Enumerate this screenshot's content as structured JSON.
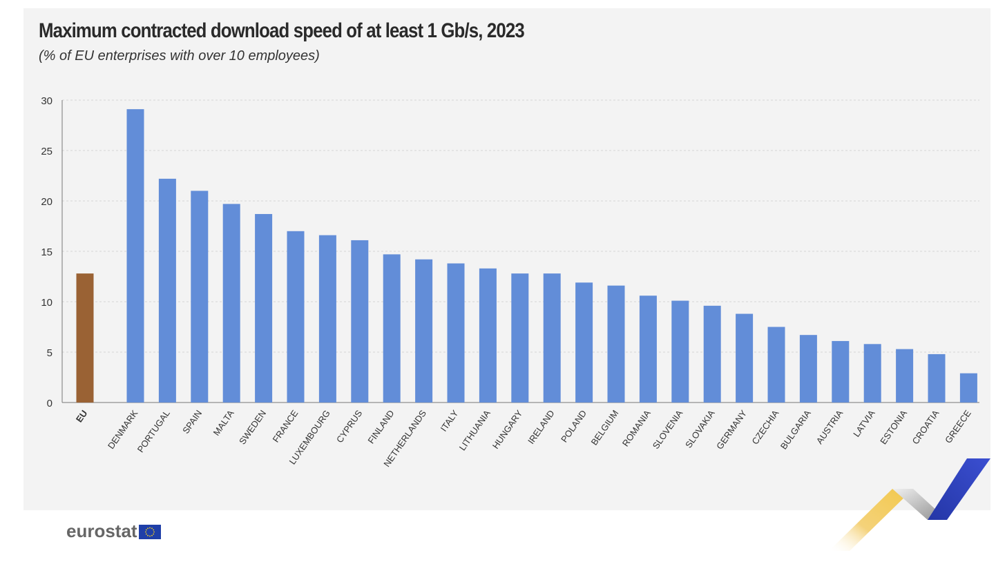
{
  "header": {
    "title": "Maximum contracted download speed of at least 1 Gb/s, 2023",
    "subtitle": "(% of EU enterprises with over 10 employees)"
  },
  "branding": {
    "wordmark": "eurostat"
  },
  "colors": {
    "panel_bg": "#f3f3f3",
    "bar_default": "#628dd8",
    "bar_highlight": "#9a6234",
    "grid": "#d4d4d4",
    "axis": "#777777",
    "text": "#333333",
    "flag_blue": "#1f3fa8",
    "flag_stars": "#ffd617",
    "decor_yellow": "#f2c84b",
    "decor_grey": "#9e9e9e",
    "decor_blue": "#2a3bb5"
  },
  "chart_data": {
    "type": "bar",
    "title": "Maximum contracted download speed of at least 1 Gb/s, 2023",
    "subtitle": "(% of EU enterprises with over 10 employees)",
    "xlabel": "",
    "ylabel": "",
    "ylim": [
      0,
      30
    ],
    "yticks": [
      0,
      5,
      10,
      15,
      20,
      25,
      30
    ],
    "grid": true,
    "legend": "none",
    "highlight_categories": [
      "EU"
    ],
    "categories": [
      "EU",
      "DENMARK",
      "PORTUGAL",
      "SPAIN",
      "MALTA",
      "SWEDEN",
      "FRANCE",
      "LUXEMBOURG",
      "CYPRUS",
      "FINLAND",
      "NETHERLANDS",
      "ITALY",
      "LITHUANIA",
      "HUNGARY",
      "IRELAND",
      "POLAND",
      "BELGIUM",
      "ROMANIA",
      "SLOVENIA",
      "SLOVAKIA",
      "GERMANY",
      "CZECHIA",
      "BULGARIA",
      "AUSTRIA",
      "LATVIA",
      "ESTONIA",
      "CROATIA",
      "GREECE"
    ],
    "values": [
      12.8,
      29.1,
      22.2,
      21.0,
      19.7,
      18.7,
      17.0,
      16.6,
      16.1,
      14.7,
      14.2,
      13.8,
      13.3,
      12.8,
      12.8,
      11.9,
      11.6,
      10.6,
      10.1,
      9.6,
      8.8,
      7.5,
      6.7,
      6.1,
      5.8,
      5.3,
      4.8,
      2.9
    ]
  }
}
